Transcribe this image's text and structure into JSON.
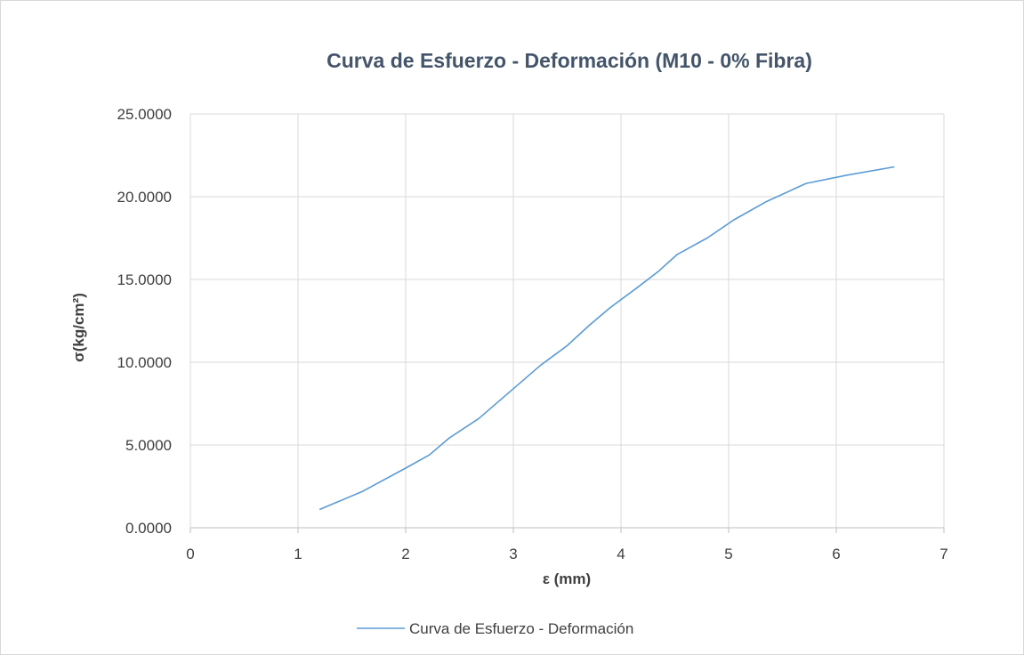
{
  "chart_data": {
    "type": "line",
    "title": "Curva de Esfuerzo - Deformación (M10 - 0% Fibra)",
    "xlabel": "ε (mm)",
    "ylabel": "σ(kg/cm²)",
    "xlim": [
      0,
      7
    ],
    "ylim": [
      0,
      25
    ],
    "x_ticks": [
      "0",
      "1",
      "2",
      "3",
      "4",
      "5",
      "6",
      "7"
    ],
    "y_ticks": [
      "0.0000",
      "5.0000",
      "10.0000",
      "15.0000",
      "20.0000",
      "25.0000"
    ],
    "grid": true,
    "legend_position": "bottom",
    "series": [
      {
        "name": "Curva de Esfuerzo - Deformación",
        "color": "#5b9bd5",
        "x": [
          1.2,
          1.6,
          2.0,
          2.22,
          2.4,
          2.68,
          3.0,
          3.25,
          3.5,
          3.7,
          3.9,
          4.15,
          4.35,
          4.52,
          4.8,
          5.05,
          5.35,
          5.72,
          6.1,
          6.54
        ],
        "y": [
          1.1,
          2.2,
          3.6,
          4.4,
          5.4,
          6.6,
          8.4,
          9.8,
          11.0,
          12.2,
          13.3,
          14.5,
          15.5,
          16.5,
          17.5,
          18.6,
          19.7,
          20.8,
          21.3,
          21.8
        ]
      }
    ]
  }
}
